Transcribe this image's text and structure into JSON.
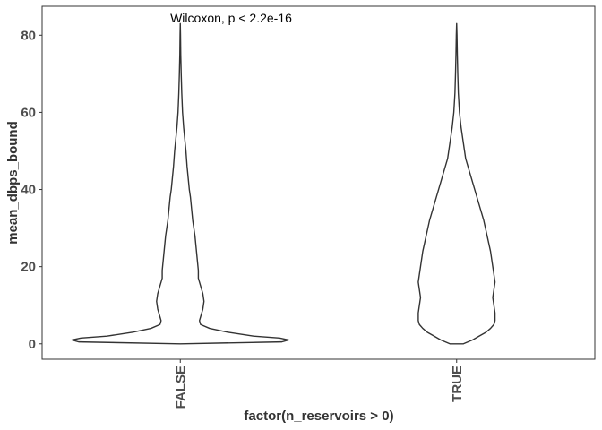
{
  "chart_data": {
    "type": "violin",
    "title": "",
    "xlabel": "factor(n_reservoirs > 0)",
    "ylabel": "mean_dbps_bound",
    "categories": [
      "FALSE",
      "TRUE"
    ],
    "ylim": [
      -4,
      87.5
    ],
    "yticks": [
      0,
      20,
      40,
      60,
      80
    ],
    "grid": false,
    "annotation": "Wilcoxon, p < 2.2e-16",
    "violins": [
      {
        "category": "FALSE",
        "profile": [
          [
            0,
            0.0
          ],
          [
            0.5,
            0.9
          ],
          [
            1,
            0.96
          ],
          [
            1.5,
            0.88
          ],
          [
            2,
            0.65
          ],
          [
            3,
            0.42
          ],
          [
            4,
            0.26
          ],
          [
            5,
            0.18
          ],
          [
            6,
            0.17
          ],
          [
            7,
            0.18
          ],
          [
            9,
            0.2
          ],
          [
            11,
            0.21
          ],
          [
            13,
            0.2
          ],
          [
            15,
            0.18
          ],
          [
            17,
            0.16
          ],
          [
            19,
            0.16
          ],
          [
            22,
            0.15
          ],
          [
            25,
            0.14
          ],
          [
            28,
            0.13
          ],
          [
            30,
            0.12
          ],
          [
            32,
            0.11
          ],
          [
            35,
            0.1
          ],
          [
            38,
            0.09
          ],
          [
            40,
            0.08
          ],
          [
            43,
            0.07
          ],
          [
            46,
            0.06
          ],
          [
            50,
            0.05
          ],
          [
            53,
            0.04
          ],
          [
            56,
            0.03
          ],
          [
            60,
            0.02
          ],
          [
            65,
            0.013
          ],
          [
            70,
            0.008
          ],
          [
            75,
            0.004
          ],
          [
            80,
            0.002
          ],
          [
            83,
            0.0
          ]
        ]
      },
      {
        "category": "TRUE",
        "profile": [
          [
            0,
            0.06
          ],
          [
            0.5,
            0.1
          ],
          [
            1,
            0.14
          ],
          [
            2,
            0.2
          ],
          [
            3,
            0.26
          ],
          [
            4,
            0.3
          ],
          [
            5,
            0.33
          ],
          [
            6,
            0.34
          ],
          [
            8,
            0.34
          ],
          [
            10,
            0.33
          ],
          [
            12,
            0.32
          ],
          [
            14,
            0.33
          ],
          [
            16,
            0.34
          ],
          [
            18,
            0.33
          ],
          [
            20,
            0.32
          ],
          [
            24,
            0.3
          ],
          [
            28,
            0.27
          ],
          [
            32,
            0.24
          ],
          [
            36,
            0.2
          ],
          [
            40,
            0.16
          ],
          [
            44,
            0.12
          ],
          [
            48,
            0.08
          ],
          [
            52,
            0.06
          ],
          [
            56,
            0.04
          ],
          [
            60,
            0.025
          ],
          [
            65,
            0.015
          ],
          [
            70,
            0.01
          ],
          [
            75,
            0.006
          ],
          [
            80,
            0.003
          ],
          [
            83,
            0.0
          ]
        ]
      }
    ]
  }
}
